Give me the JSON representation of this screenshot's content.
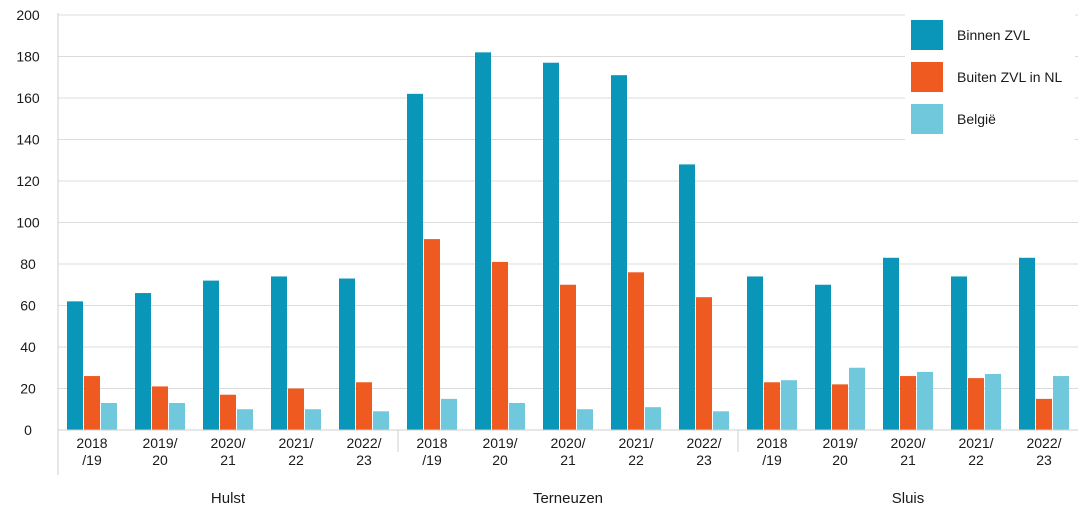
{
  "chart_data": {
    "type": "bar",
    "title": "",
    "xlabel": "",
    "ylabel": "",
    "ylim": [
      0,
      200
    ],
    "yticks": [
      0,
      20,
      40,
      60,
      80,
      100,
      120,
      140,
      160,
      180,
      200
    ],
    "grid": true,
    "legend_position": "top-right",
    "groups": [
      {
        "name": "Hulst",
        "categories": [
          "2018\n/19",
          "2019/\n20",
          "2020/\n21",
          "2021/\n22",
          "2022/\n23"
        ]
      },
      {
        "name": "Terneuzen",
        "categories": [
          "2018\n/19",
          "2019/\n20",
          "2020/\n21",
          "2021/\n22",
          "2022/\n23"
        ]
      },
      {
        "name": "Sluis",
        "categories": [
          "2018\n/19",
          "2019/\n20",
          "2020/\n21",
          "2021/\n22",
          "2022/\n23"
        ]
      }
    ],
    "series": [
      {
        "name": "Binnen ZVL",
        "color": "#0a96b8",
        "values": [
          62,
          66,
          72,
          74,
          73,
          162,
          182,
          177,
          171,
          128,
          74,
          70,
          83,
          74,
          83
        ]
      },
      {
        "name": "Buiten ZVL in NL",
        "color": "#ee5a1f",
        "values": [
          26,
          21,
          17,
          20,
          23,
          92,
          81,
          70,
          76,
          64,
          23,
          22,
          26,
          25,
          15
        ]
      },
      {
        "name": "België",
        "color": "#6fc8db",
        "values": [
          13,
          13,
          10,
          10,
          9,
          15,
          13,
          10,
          11,
          9,
          24,
          30,
          28,
          27,
          26
        ]
      }
    ]
  }
}
